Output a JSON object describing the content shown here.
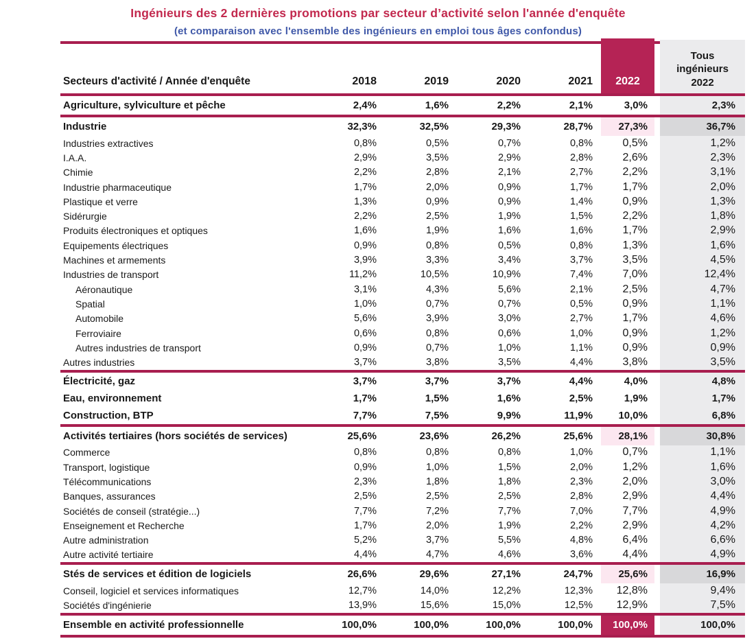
{
  "title": "Ingénieurs des 2 dernières promotions par secteur d’activité selon l'année d'enquête",
  "subtitle": "(et comparaison avec l'ensemble des ingénieurs en emploi tous âges confondus)",
  "colors": {
    "accent_crimson": "#b52355",
    "divider_line": "#a81e4f",
    "title_red": "#c2294e",
    "subtitle_blue": "#3f58a8",
    "highlight_pink": "#fce7f0",
    "column_gray_light": "#ebebed",
    "column_gray_dark": "#d8d8da"
  },
  "table": {
    "corner_label": "Secteurs d'activité / Année d'enquête",
    "years": [
      "2018",
      "2019",
      "2020",
      "2021",
      "2022"
    ],
    "tous_header_lines": [
      "Tous",
      "ingénieurs",
      "2022"
    ],
    "rows": [
      {
        "label": "Agriculture, sylviculture et pêche",
        "style": "bold",
        "divider_above": true,
        "values": [
          "2,4%",
          "1,6%",
          "2,2%",
          "2,1%",
          "3,0%",
          "2,3%"
        ]
      },
      {
        "label": "Industrie",
        "style": "total",
        "divider_above": true,
        "values": [
          "32,3%",
          "32,5%",
          "29,3%",
          "28,7%",
          "27,3%",
          "36,7%"
        ]
      },
      {
        "label": "Industries extractives",
        "style": "sub",
        "divider_above": false,
        "values": [
          "0,8%",
          "0,5%",
          "0,7%",
          "0,8%",
          "0,5%",
          "1,2%"
        ]
      },
      {
        "label": "I.A.A.",
        "style": "sub",
        "divider_above": false,
        "values": [
          "2,9%",
          "3,5%",
          "2,9%",
          "2,8%",
          "2,6%",
          "2,3%"
        ]
      },
      {
        "label": "Chimie",
        "style": "sub",
        "divider_above": false,
        "values": [
          "2,2%",
          "2,8%",
          "2,1%",
          "2,7%",
          "2,2%",
          "3,1%"
        ]
      },
      {
        "label": "Industrie pharmaceutique",
        "style": "sub",
        "divider_above": false,
        "values": [
          "1,7%",
          "2,0%",
          "0,9%",
          "1,7%",
          "1,7%",
          "2,0%"
        ]
      },
      {
        "label": "Plastique et verre",
        "style": "sub",
        "divider_above": false,
        "values": [
          "1,3%",
          "0,9%",
          "0,9%",
          "1,4%",
          "0,9%",
          "1,3%"
        ]
      },
      {
        "label": "Sidérurgie",
        "style": "sub",
        "divider_above": false,
        "values": [
          "2,2%",
          "2,5%",
          "1,9%",
          "1,5%",
          "2,2%",
          "1,8%"
        ]
      },
      {
        "label": "Produits électroniques et optiques",
        "style": "sub",
        "divider_above": false,
        "values": [
          "1,6%",
          "1,9%",
          "1,6%",
          "1,6%",
          "1,7%",
          "2,9%"
        ]
      },
      {
        "label": "Equipements électriques",
        "style": "sub",
        "divider_above": false,
        "values": [
          "0,9%",
          "0,8%",
          "0,5%",
          "0,8%",
          "1,3%",
          "1,6%"
        ]
      },
      {
        "label": "Machines et armements",
        "style": "sub",
        "divider_above": false,
        "values": [
          "3,9%",
          "3,3%",
          "3,4%",
          "3,7%",
          "3,5%",
          "4,5%"
        ]
      },
      {
        "label": "Industries de transport",
        "style": "sub",
        "divider_above": false,
        "values": [
          "11,2%",
          "10,5%",
          "10,9%",
          "7,4%",
          "7,0%",
          "12,4%"
        ]
      },
      {
        "label": "Aéronautique",
        "style": "subsub",
        "divider_above": false,
        "values": [
          "3,1%",
          "4,3%",
          "5,6%",
          "2,1%",
          "2,5%",
          "4,7%"
        ]
      },
      {
        "label": "Spatial",
        "style": "subsub",
        "divider_above": false,
        "values": [
          "1,0%",
          "0,7%",
          "0,7%",
          "0,5%",
          "0,9%",
          "1,1%"
        ]
      },
      {
        "label": "Automobile",
        "style": "subsub",
        "divider_above": false,
        "values": [
          "5,6%",
          "3,9%",
          "3,0%",
          "2,7%",
          "1,7%",
          "4,6%"
        ]
      },
      {
        "label": "Ferroviaire",
        "style": "subsub",
        "divider_above": false,
        "values": [
          "0,6%",
          "0,8%",
          "0,6%",
          "1,0%",
          "0,9%",
          "1,2%"
        ]
      },
      {
        "label": "Autres industries de transport",
        "style": "subsub",
        "divider_above": false,
        "values": [
          "0,9%",
          "0,7%",
          "1,0%",
          "1,1%",
          "0,9%",
          "0,9%"
        ]
      },
      {
        "label": "Autres industries",
        "style": "sub",
        "divider_above": false,
        "values": [
          "3,7%",
          "3,8%",
          "3,5%",
          "4,4%",
          "3,8%",
          "3,5%"
        ]
      },
      {
        "label": "Électricité, gaz",
        "style": "tall",
        "divider_above": true,
        "values": [
          "3,7%",
          "3,7%",
          "3,7%",
          "4,4%",
          "4,0%",
          "4,8%"
        ]
      },
      {
        "label": "Eau, environnement",
        "style": "tall",
        "divider_above": false,
        "values": [
          "1,7%",
          "1,5%",
          "1,6%",
          "2,5%",
          "1,9%",
          "1,7%"
        ]
      },
      {
        "label": "Construction, BTP",
        "style": "tall",
        "divider_above": false,
        "values": [
          "7,7%",
          "7,5%",
          "9,9%",
          "11,9%",
          "10,0%",
          "6,8%"
        ]
      },
      {
        "label": "Activités tertiaires (hors sociétés de services)",
        "style": "total",
        "divider_above": true,
        "values": [
          "25,6%",
          "23,6%",
          "26,2%",
          "25,6%",
          "28,1%",
          "30,8%"
        ]
      },
      {
        "label": "Commerce",
        "style": "sub",
        "divider_above": false,
        "values": [
          "0,8%",
          "0,8%",
          "0,8%",
          "1,0%",
          "0,7%",
          "1,1%"
        ]
      },
      {
        "label": "Transport, logistique",
        "style": "sub",
        "divider_above": false,
        "values": [
          "0,9%",
          "1,0%",
          "1,5%",
          "2,0%",
          "1,2%",
          "1,6%"
        ]
      },
      {
        "label": "Télécommunications",
        "style": "sub",
        "divider_above": false,
        "values": [
          "2,3%",
          "1,8%",
          "1,8%",
          "2,3%",
          "2,0%",
          "3,0%"
        ]
      },
      {
        "label": "Banques, assurances",
        "style": "sub",
        "divider_above": false,
        "values": [
          "2,5%",
          "2,5%",
          "2,5%",
          "2,8%",
          "2,9%",
          "4,4%"
        ]
      },
      {
        "label": "Sociétés de conseil (stratégie...)",
        "style": "sub",
        "divider_above": false,
        "values": [
          "7,7%",
          "7,2%",
          "7,7%",
          "7,0%",
          "7,7%",
          "4,9%"
        ]
      },
      {
        "label": "Enseignement et Recherche",
        "style": "sub",
        "divider_above": false,
        "values": [
          "1,7%",
          "2,0%",
          "1,9%",
          "2,2%",
          "2,9%",
          "4,2%"
        ]
      },
      {
        "label": "Autre administration",
        "style": "sub",
        "divider_above": false,
        "values": [
          "5,2%",
          "3,7%",
          "5,5%",
          "4,8%",
          "6,4%",
          "6,6%"
        ]
      },
      {
        "label": "Autre activité tertiaire",
        "style": "sub",
        "divider_above": false,
        "values": [
          "4,4%",
          "4,7%",
          "4,6%",
          "3,6%",
          "4,4%",
          "4,9%"
        ]
      },
      {
        "label": "Stés de services et édition de logiciels",
        "style": "total",
        "divider_above": true,
        "values": [
          "26,6%",
          "29,6%",
          "27,1%",
          "24,7%",
          "25,6%",
          "16,9%"
        ]
      },
      {
        "label": "Conseil, logiciel et services informatiques",
        "style": "sub",
        "divider_above": false,
        "values": [
          "12,7%",
          "14,0%",
          "12,2%",
          "12,3%",
          "12,8%",
          "9,4%"
        ]
      },
      {
        "label": "Sociétés d'ingénierie",
        "style": "sub",
        "divider_above": false,
        "values": [
          "13,9%",
          "15,6%",
          "15,0%",
          "12,5%",
          "12,9%",
          "7,5%"
        ]
      },
      {
        "label": "Ensemble en activité professionnelle",
        "style": "ens",
        "divider_above": true,
        "values": [
          "100,0%",
          "100,0%",
          "100,0%",
          "100,0%",
          "100,0%",
          "100,0%"
        ]
      }
    ]
  }
}
